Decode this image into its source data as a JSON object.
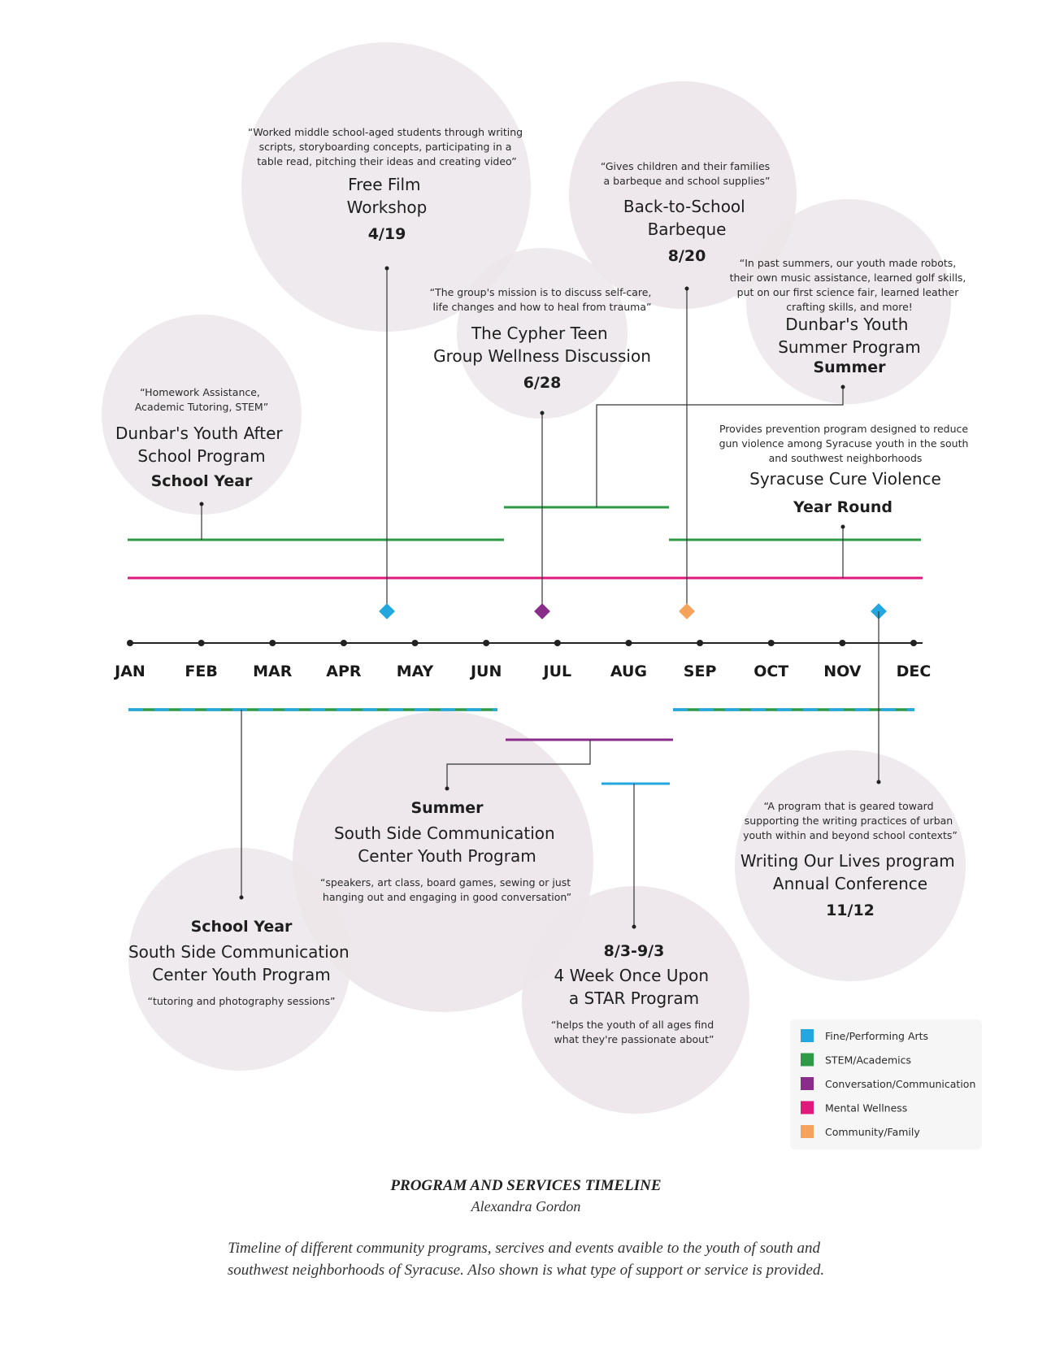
{
  "colors": {
    "arts": "#22a7e0",
    "stem": "#2e9a48",
    "conversation": "#8a2c8a",
    "wellness": "#e0197d",
    "community": "#f5a25a",
    "axis": "#222222"
  },
  "months": [
    "JAN",
    "FEB",
    "MAR",
    "APR",
    "MAY",
    "JUN",
    "JUL",
    "AUG",
    "SEP",
    "OCT",
    "NOV",
    "DEC"
  ],
  "events_above": [
    {
      "id": "after-school",
      "quote": [
        "“Homework Assistance,",
        "Academic Tutoring, STEM”"
      ],
      "title": [
        "Dunbar's Youth After",
        "School Program"
      ],
      "date": "School Year",
      "category": "stem"
    },
    {
      "id": "film-workshop",
      "quote": [
        "“Worked middle school-aged students through writing",
        "scripts, storyboarding concepts, participating in a",
        "table read, pitching their ideas and creating video”"
      ],
      "title": [
        "Free Film",
        "Workshop"
      ],
      "date": "4/19",
      "category": "arts"
    },
    {
      "id": "cypher-teen",
      "quote": [
        "“The group's mission is to discuss self-care,",
        "life changes and how to heal from trauma”"
      ],
      "title": [
        "The Cypher Teen",
        "Group Wellness Discussion"
      ],
      "date": "6/28",
      "category": "conversation"
    },
    {
      "id": "bbq",
      "quote": [
        "“Gives children and their families",
        "a barbeque and school supplies”"
      ],
      "title": [
        "Back-to-School",
        "Barbeque"
      ],
      "date": "8/20",
      "category": "community"
    },
    {
      "id": "summer-dunbar",
      "quote": [
        "“In past summers, our youth made robots,",
        "their own music assistance, learned golf skills,",
        "put on our first science fair, learned leather",
        "crafting skills, and more!"
      ],
      "title": [
        "Dunbar's Youth",
        "Summer Program"
      ],
      "date": "Summer",
      "category": "stem"
    },
    {
      "id": "cure-violence",
      "quote": [
        "Provides prevention program designed to reduce",
        "gun violence among Syracuse youth in the south",
        "and southwest neighborhoods"
      ],
      "title": [
        "Syracuse Cure Violence"
      ],
      "date": "Year Round",
      "category": "wellness"
    }
  ],
  "events_below": [
    {
      "id": "ssc-school",
      "date": "School Year",
      "title": [
        "South Side Communication",
        "Center Youth Program"
      ],
      "quote": [
        "“tutoring and photography sessions”"
      ],
      "category": "arts+stem"
    },
    {
      "id": "ssc-summer",
      "date": "Summer",
      "title": [
        "South Side Communication",
        "Center Youth Program"
      ],
      "quote": [
        "“speakers, art class, board games, sewing or just",
        "hanging out and engaging in good conversation”"
      ],
      "category": "conversation"
    },
    {
      "id": "star",
      "date": "8/3-9/3",
      "title": [
        "4 Week Once Upon",
        "a STAR Program"
      ],
      "quote": [
        "“helps the youth of all ages find",
        "what they're passionate about”"
      ],
      "category": "arts"
    },
    {
      "id": "writing-lives",
      "quote": [
        "“A program that is geared toward",
        "supporting the writing practices of urban",
        "youth within and beyond school contexts”"
      ],
      "title": [
        "Writing Our Lives program",
        "Annual Conference"
      ],
      "date": "11/12",
      "category": "arts"
    }
  ],
  "legend": [
    {
      "label": "Fine/Performing Arts",
      "color": "#22a7e0"
    },
    {
      "label": "STEM/Academics",
      "color": "#2e9a48"
    },
    {
      "label": "Conversation/Communication",
      "color": "#8a2c8a"
    },
    {
      "label": "Mental Wellness",
      "color": "#e0197d"
    },
    {
      "label": "Community/Family",
      "color": "#f5a25a"
    }
  ],
  "caption": {
    "title": "PROGRAM AND SERVICES TIMELINE",
    "author": "Alexandra Gordon",
    "description": [
      "Timeline of different community programs, sercives and events avaible to the youth of south and",
      "southwest neighborhoods of Syracuse. Also shown is what type of support or service is provided."
    ]
  }
}
